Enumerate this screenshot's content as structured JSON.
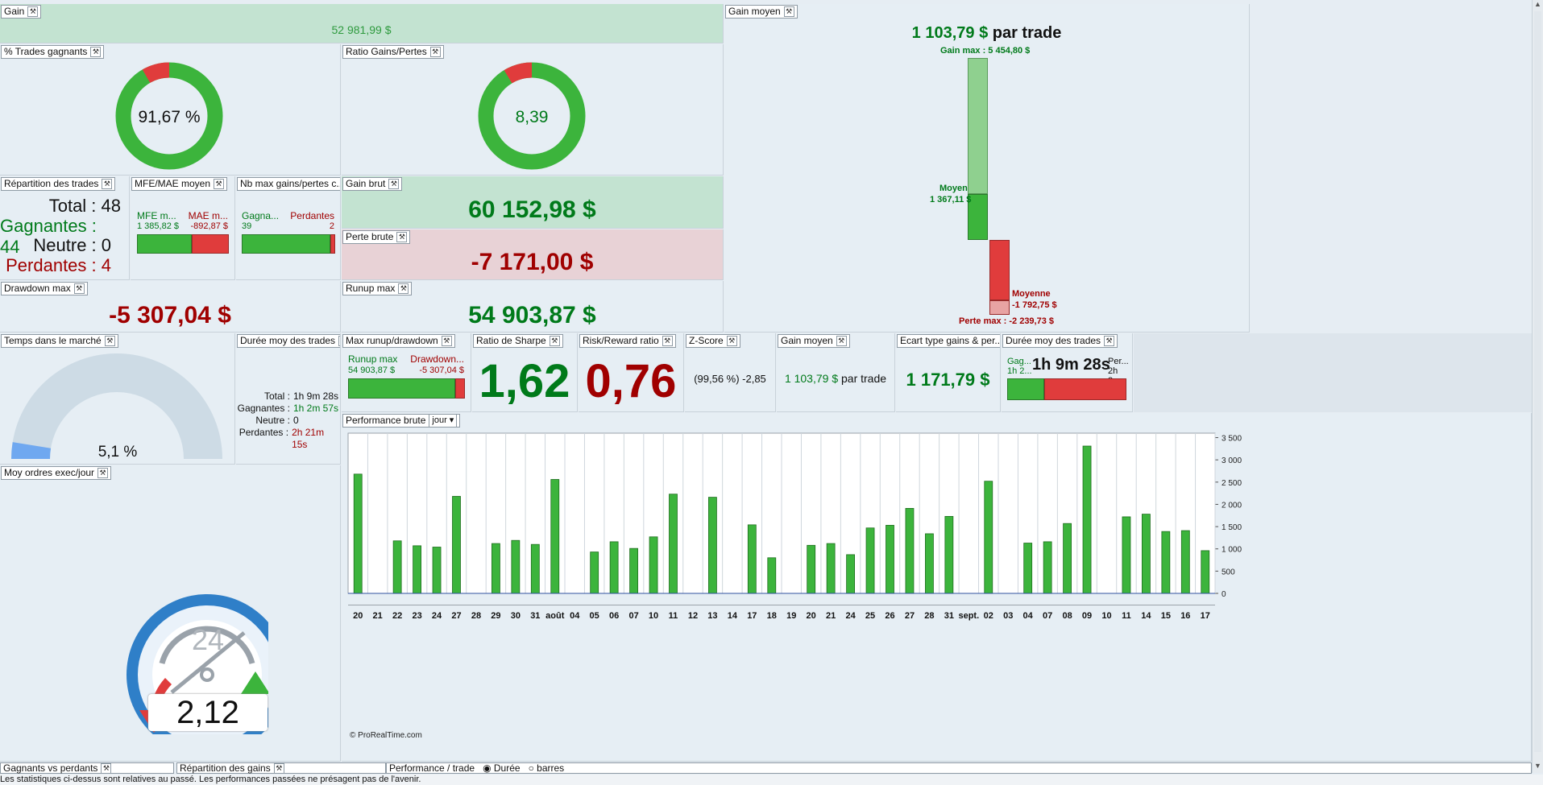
{
  "gain": {
    "title": "Gain",
    "value": "52 981,99 $"
  },
  "pct_trades": {
    "title": "% Trades gagnants",
    "value": "91,67 %",
    "fraction": 0.9167
  },
  "ratio": {
    "title": "Ratio Gains/Pertes",
    "value": "8,39",
    "fraction": 0.9135
  },
  "gain_moyen_big": {
    "title": "Gain moyen",
    "value": "1 103,79 $",
    "suffix": "par trade",
    "gain_max": "Gain max : 5 454,80 $",
    "moyen_label": "Moyen",
    "moyen_value": "1 367,11 $",
    "moyenne_label": "Moyenne",
    "moyenne_value": "-1 792,75 $",
    "perte_max": "Perte max : -2 239,73 $"
  },
  "repartition": {
    "title": "Répartition des trades",
    "total": "Total : 48",
    "gagnantes": "Gagnantes : 44",
    "neutre": "Neutre : 0",
    "perdantes": "Perdantes : 4"
  },
  "mfe": {
    "title": "MFE/MAE moyen",
    "mfe_label": "MFE m...",
    "mfe_value": "1 385,82 $",
    "mae_label": "MAE m...",
    "mae_value": "-892,87 $"
  },
  "nbmax": {
    "title": "Nb max gains/pertes c...",
    "gain_label": "Gagna...",
    "gain_value": "39",
    "loss_label": "Perdantes",
    "loss_value": "2"
  },
  "gain_brut": {
    "title": "Gain brut",
    "value": "60 152,98 $"
  },
  "perte_brute": {
    "title": "Perte brute",
    "value": "-7 171,00 $"
  },
  "drawdown": {
    "title": "Drawdown max",
    "value": "-5 307,04 $"
  },
  "runup": {
    "title": "Runup max",
    "value": "54 903,87 $"
  },
  "temps": {
    "title": "Temps dans le marché",
    "value": "5,1 %",
    "fraction": 0.051
  },
  "duree": {
    "title": "Durée moy des trades",
    "total_label": "Total :",
    "total": "1h 9m 28s",
    "gagnantes_label": "Gagnantes :",
    "gagnantes": "1h 2m 57s",
    "neutre_label": "Neutre :",
    "neutre": "0",
    "perdantes_label": "Perdantes :",
    "perdantes": "2h 21m 15s"
  },
  "maxrun": {
    "title": "Max runup/drawdown",
    "run_label": "Runup max",
    "run_value": "54 903,87 $",
    "dd_label": "Drawdown...",
    "dd_value": "-5 307,04 $"
  },
  "sharpe": {
    "title": "Ratio de Sharpe",
    "value": "1,62"
  },
  "rr": {
    "title": "Risk/Reward ratio",
    "value": "0,76"
  },
  "zscore": {
    "title": "Z-Score",
    "value": "(99,56 %) -2,85"
  },
  "gain_moyen_small": {
    "title": "Gain moyen",
    "value": "1 103,79 $",
    "suffix": "par trade"
  },
  "ecart": {
    "title": "Ecart type gains & per...",
    "value": "1 171,79 $"
  },
  "duree2": {
    "title": "Durée moy des trades",
    "g_label": "Gag...",
    "g_value": "1h 2...",
    "center": "1h 9m 28s",
    "p_label": "Per...",
    "p_value": "2h 2..."
  },
  "perf": {
    "title": "Performance brute",
    "period": "jour",
    "credit": "© ProRealTime.com"
  },
  "ordres": {
    "title": "Moy ordres exec/jour",
    "value": "2,12",
    "dial": "24"
  },
  "bottom_tabs": [
    "Gagnants vs perdants",
    "Répartition des gains",
    "Performance / trade"
  ],
  "radio": {
    "duree": "Durée",
    "barres": "barres"
  },
  "disclaimer": "Les statistiques ci-dessus sont relatives au passé. Les performances passées ne présagent pas de l'avenir.",
  "colors": {
    "green": "#3cb43c",
    "red": "#e03c3c",
    "text_green": "#007a1a",
    "text_red": "#a00000"
  },
  "chart_data": {
    "type": "bar",
    "title": "Performance brute",
    "categories": [
      "20",
      "21",
      "22",
      "23",
      "24",
      "27",
      "28",
      "29",
      "30",
      "31",
      "août",
      "04",
      "05",
      "06",
      "07",
      "10",
      "11",
      "12",
      "13",
      "14",
      "17",
      "18",
      "19",
      "20",
      "21",
      "24",
      "25",
      "26",
      "27",
      "28",
      "31",
      "sept.",
      "02",
      "03",
      "04",
      "07",
      "08",
      "09",
      "10",
      "11",
      "14",
      "15",
      "16",
      "17"
    ],
    "values": [
      2680,
      0,
      1180,
      1070,
      1040,
      2180,
      0,
      1120,
      1190,
      1100,
      2560,
      0,
      930,
      1160,
      1010,
      1270,
      2230,
      0,
      2160,
      0,
      1540,
      800,
      0,
      1080,
      1120,
      870,
      1470,
      1530,
      1910,
      1340,
      1730,
      0,
      2520,
      0,
      1130,
      1160,
      1570,
      3310,
      0,
      1720,
      1780,
      1390,
      1410,
      960
    ],
    "ylim": [
      0,
      3600
    ],
    "yticks": [
      0,
      500,
      1000,
      1500,
      2000,
      2500,
      3000,
      3500
    ],
    "ytick_labels": [
      "0",
      "500",
      "1 000",
      "1 500",
      "2 000",
      "2 500",
      "3 000",
      "3 500"
    ],
    "grid": true
  }
}
